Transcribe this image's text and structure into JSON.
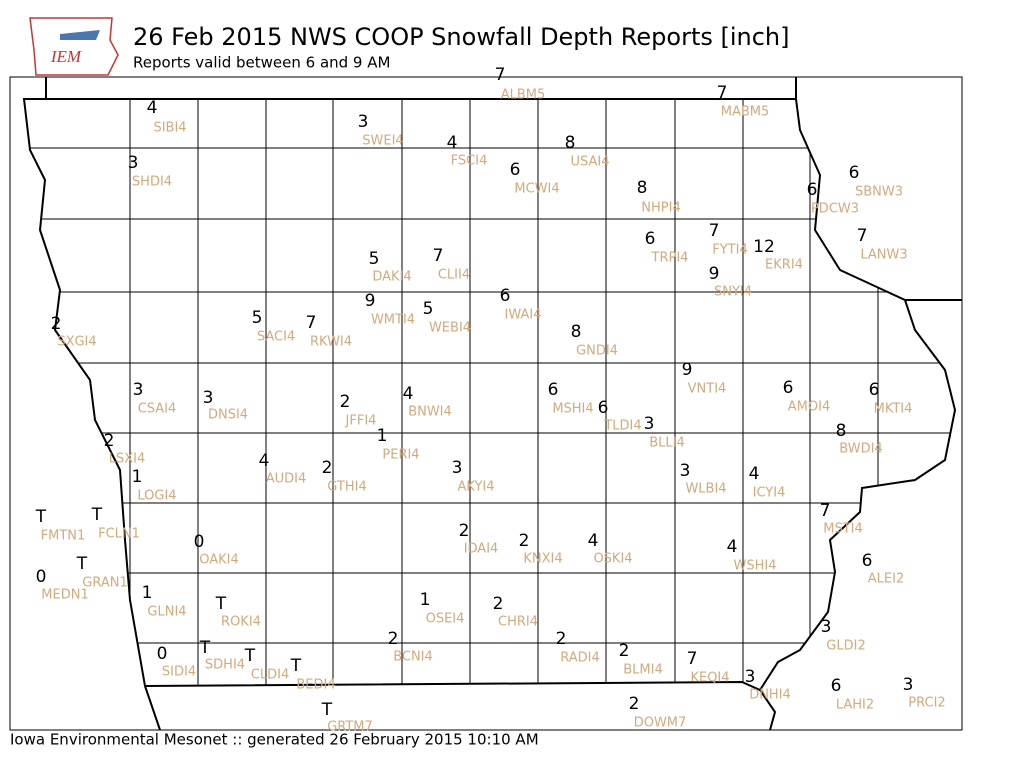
{
  "header": {
    "title": "26 Feb 2015 NWS COOP Snowfall Depth Reports [inch]",
    "subtitle": "Reports valid between 6 and 9 AM",
    "logo": "IEM"
  },
  "footer": "Iowa Environmental Mesonet :: generated 26 February 2015 10:10 AM",
  "stations": [
    {
      "id": "SIBI4",
      "value": 4
    },
    {
      "id": "SWEI4",
      "value": 3
    },
    {
      "id": "FSCI4",
      "value": 4
    },
    {
      "id": "USAI4",
      "value": 8
    },
    {
      "id": "MCWI4",
      "value": 6
    },
    {
      "id": "SHDI4",
      "value": 3
    },
    {
      "id": "NHPI4",
      "value": 8
    },
    {
      "id": "PDCW3",
      "value": 6
    },
    {
      "id": "SBNW3",
      "value": 6
    },
    {
      "id": "MABM5",
      "value": 7
    },
    {
      "id": "ALBM5",
      "value": 7
    },
    {
      "id": "FYTI4",
      "value": 7
    },
    {
      "id": "EKRI4",
      "value": 12
    },
    {
      "id": "LANW3",
      "value": 7
    },
    {
      "id": "TRPI4",
      "value": 6
    },
    {
      "id": "SNYI4",
      "value": 9
    },
    {
      "id": "DAKI4",
      "value": 5
    },
    {
      "id": "CLII4",
      "value": 7
    },
    {
      "id": "IWAI4",
      "value": 6
    },
    {
      "id": "WMTI4",
      "value": 9
    },
    {
      "id": "WEBI4",
      "value": 5
    },
    {
      "id": "SACI4",
      "value": 5
    },
    {
      "id": "RKWI4",
      "value": 7
    },
    {
      "id": "SXGI4",
      "value": 2
    },
    {
      "id": "GNDI4",
      "value": 8
    },
    {
      "id": "VNTI4",
      "value": 9
    },
    {
      "id": "AMOI4",
      "value": 6
    },
    {
      "id": "MKTI4",
      "value": 6
    },
    {
      "id": "CSAI4",
      "value": 3
    },
    {
      "id": "DNSI4",
      "value": 3
    },
    {
      "id": "JFFI4",
      "value": 2
    },
    {
      "id": "BNWI4",
      "value": 4
    },
    {
      "id": "MSHI4",
      "value": 6
    },
    {
      "id": "TLDI4",
      "value": 6
    },
    {
      "id": "BLLI4",
      "value": 3
    },
    {
      "id": "BWDI4",
      "value": 8
    },
    {
      "id": "LSXI4",
      "value": 2
    },
    {
      "id": "PERI4",
      "value": 1
    },
    {
      "id": "AUDI4",
      "value": 4
    },
    {
      "id": "GTHI4",
      "value": 2
    },
    {
      "id": "AKYI4",
      "value": 3
    },
    {
      "id": "WLBI4",
      "value": 3
    },
    {
      "id": "ICYI4",
      "value": 4
    },
    {
      "id": "LOGI4",
      "value": 1
    },
    {
      "id": "MSTI4",
      "value": 7
    },
    {
      "id": "FMTN1",
      "value": "T"
    },
    {
      "id": "FCLN1",
      "value": "T"
    },
    {
      "id": "OAKI4",
      "value": 0
    },
    {
      "id": "IDAI4",
      "value": 2
    },
    {
      "id": "KNXI4",
      "value": 2
    },
    {
      "id": "OSKI4",
      "value": 4
    },
    {
      "id": "WSHI4",
      "value": 4
    },
    {
      "id": "ALEI2",
      "value": 6
    },
    {
      "id": "MEDN1",
      "value": 0
    },
    {
      "id": "GRAN1",
      "value": "T"
    },
    {
      "id": "GLNI4",
      "value": 1
    },
    {
      "id": "ROKI4",
      "value": "T"
    },
    {
      "id": "OSEI4",
      "value": 1
    },
    {
      "id": "CHRI4",
      "value": 2
    },
    {
      "id": "GLDI2",
      "value": 3
    },
    {
      "id": "BCNI4",
      "value": 2
    },
    {
      "id": "RADI4",
      "value": 2
    },
    {
      "id": "SDHI4",
      "value": "T"
    },
    {
      "id": "SIDI4",
      "value": 0
    },
    {
      "id": "CLDI4",
      "value": "T"
    },
    {
      "id": "BEDI4",
      "value": "T"
    },
    {
      "id": "BLMI4",
      "value": 2
    },
    {
      "id": "KEQI4",
      "value": 7
    },
    {
      "id": "DNHI4",
      "value": 3
    },
    {
      "id": "LAHI2",
      "value": 6
    },
    {
      "id": "PRCI2",
      "value": 3
    },
    {
      "id": "DOWM7",
      "value": 2
    },
    {
      "id": "GRTM7",
      "value": "T"
    }
  ]
}
